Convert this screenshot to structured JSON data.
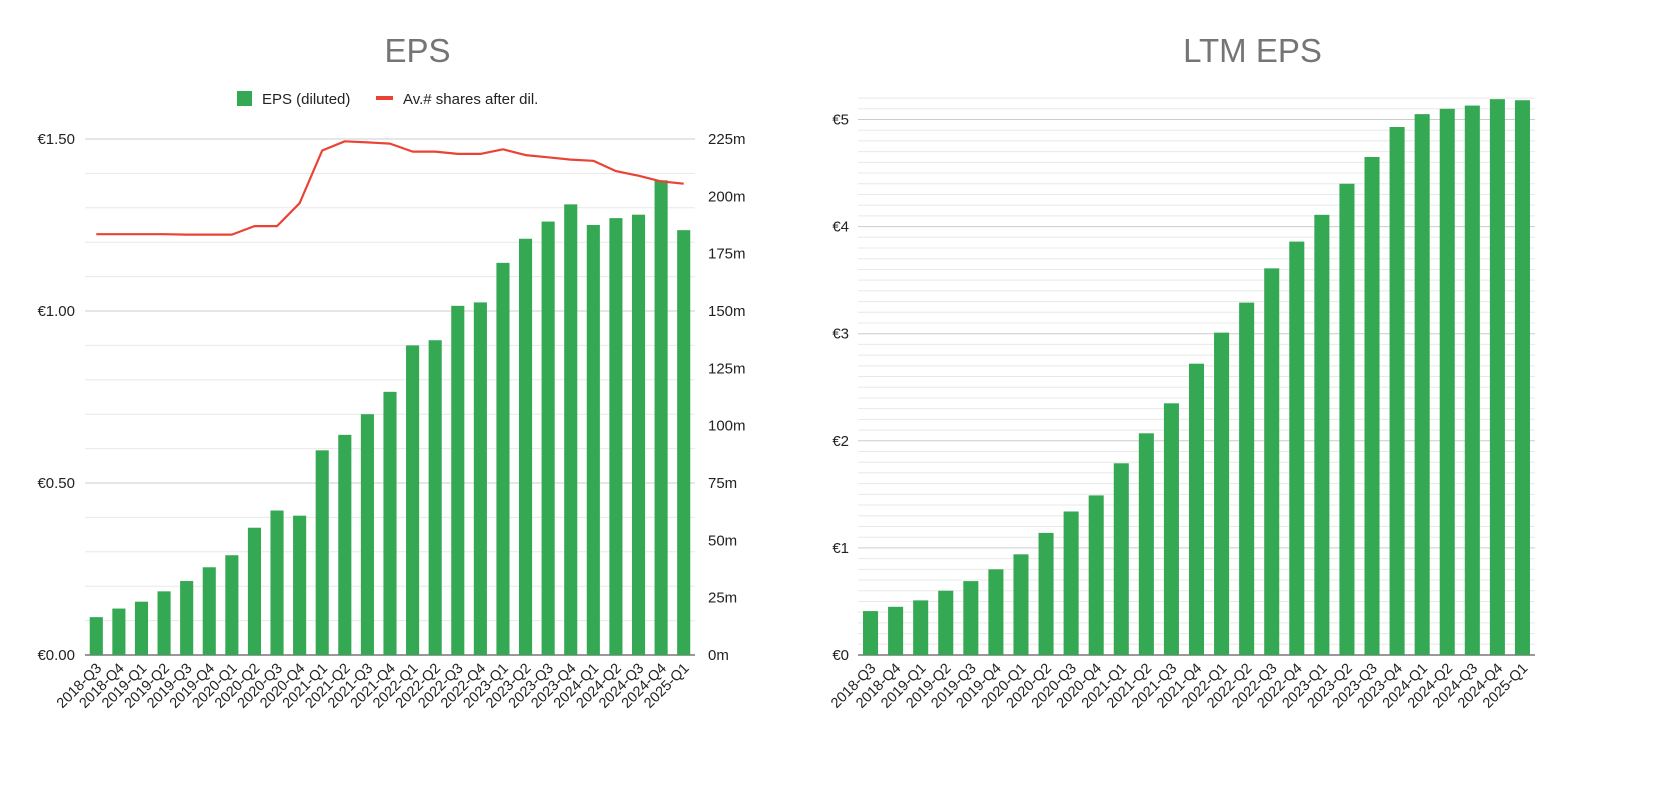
{
  "charts": {
    "left": {
      "title": "EPS",
      "colors": {
        "bar": "#34a853",
        "line": "#ea4335",
        "grid": "#cccccc",
        "minor_grid": "#e8e8e8"
      }
    },
    "right": {
      "title": "LTM EPS",
      "colors": {
        "bar": "#34a853",
        "grid": "#cccccc",
        "minor_grid": "#e8e8e8"
      }
    }
  },
  "chart_data": [
    {
      "type": "bar",
      "title": "EPS",
      "categories": [
        "2018-Q3",
        "2018-Q4",
        "2019-Q1",
        "2019-Q2",
        "2019-Q3",
        "2019-Q4",
        "2020-Q1",
        "2020-Q2",
        "2020-Q3",
        "2020-Q4",
        "2021-Q1",
        "2021-Q2",
        "2021-Q3",
        "2021-Q4",
        "2022-Q1",
        "2022-Q2",
        "2022-Q3",
        "2022-Q4",
        "2023-Q1",
        "2023-Q2",
        "2023-Q3",
        "2023-Q4",
        "2024-Q1",
        "2024-Q2",
        "2024-Q3",
        "2024-Q4",
        "2025-Q1"
      ],
      "series": [
        {
          "name": "EPS (diluted)",
          "type": "bar",
          "axis": "left",
          "values": [
            0.11,
            0.135,
            0.155,
            0.185,
            0.215,
            0.255,
            0.29,
            0.37,
            0.42,
            0.405,
            0.595,
            0.64,
            0.7,
            0.765,
            0.9,
            0.915,
            1.015,
            1.025,
            1.14,
            1.21,
            1.26,
            1.31,
            1.25,
            1.27,
            1.28,
            1.38,
            1.235
          ]
        },
        {
          "name": "Av.# shares after dil.",
          "type": "line",
          "axis": "right",
          "values": [
            183.5,
            183.5,
            183.5,
            183.5,
            183.3,
            183.3,
            183.3,
            187,
            187,
            197,
            220,
            224,
            223.5,
            223,
            219.5,
            219.5,
            218.5,
            218.5,
            220.5,
            218,
            217,
            216,
            215.5,
            211,
            209,
            206.5,
            205.5
          ]
        }
      ],
      "y_left": {
        "ticks": [
          "€0.00",
          "€0.50",
          "€1.00",
          "€1.50"
        ],
        "range": [
          0,
          1.5
        ]
      },
      "y_right": {
        "ticks": [
          "0m",
          "25m",
          "50m",
          "75m",
          "100m",
          "125m",
          "150m",
          "175m",
          "200m",
          "225m"
        ],
        "range": [
          0,
          225
        ]
      },
      "legend_position": "top",
      "grid": true
    },
    {
      "type": "bar",
      "title": "LTM EPS",
      "categories": [
        "2018-Q3",
        "2018-Q4",
        "2019-Q1",
        "2019-Q2",
        "2019-Q3",
        "2019-Q4",
        "2020-Q1",
        "2020-Q2",
        "2020-Q3",
        "2020-Q4",
        "2021-Q1",
        "2021-Q2",
        "2021-Q3",
        "2021-Q4",
        "2022-Q1",
        "2022-Q2",
        "2022-Q3",
        "2022-Q4",
        "2023-Q1",
        "2023-Q2",
        "2023-Q3",
        "2023-Q4",
        "2024-Q1",
        "2024-Q2",
        "2024-Q3",
        "2024-Q4",
        "2025-Q1"
      ],
      "series": [
        {
          "type": "bar",
          "values": [
            0.41,
            0.45,
            0.51,
            0.6,
            0.69,
            0.8,
            0.94,
            1.14,
            1.34,
            1.49,
            1.79,
            2.07,
            2.35,
            2.72,
            3.01,
            3.29,
            3.61,
            3.86,
            4.11,
            4.4,
            4.65,
            4.93,
            5.05,
            5.1,
            5.13,
            5.19,
            5.18
          ]
        }
      ],
      "y": {
        "ticks": [
          "€0",
          "€1",
          "€2",
          "€3",
          "€4",
          "€5"
        ],
        "range": [
          0,
          5.2
        ]
      },
      "grid": true
    }
  ]
}
